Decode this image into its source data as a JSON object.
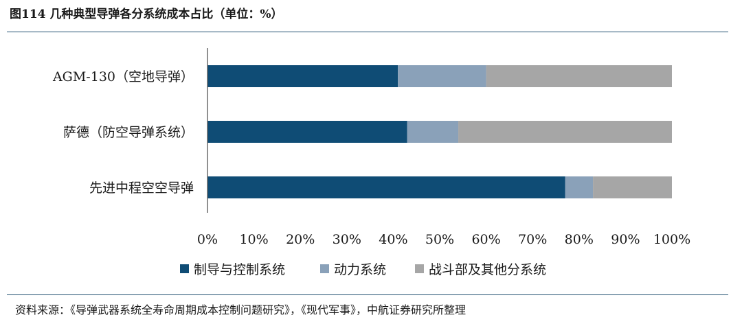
{
  "title": "图114  几种典型导弹各分系统成本占比（单位：%）",
  "source": "资料来源：《导弹武器系统全寿命周期成本控制问题研究》，《现代军事》，中航证券研究所整理",
  "chart_data": {
    "type": "bar",
    "orientation": "horizontal",
    "stacked": true,
    "title": "图114  几种典型导弹各分系统成本占比（单位：%）",
    "categories": [
      "AGM-130（空地导弹）",
      "萨德（防空导弹系统）",
      "先进中程空空导弹"
    ],
    "series": [
      {
        "name": "制导与控制系统",
        "color": "#0f4c75",
        "values": [
          41,
          43,
          77
        ]
      },
      {
        "name": "动力系统",
        "color": "#8aa1b9",
        "values": [
          19,
          11,
          6
        ]
      },
      {
        "name": "战斗部及其他分系统",
        "color": "#a6a6a6",
        "values": [
          40,
          46,
          17
        ]
      }
    ],
    "xlim": [
      0,
      100
    ],
    "xticks": [
      "0%",
      "10%",
      "20%",
      "30%",
      "40%",
      "50%",
      "60%",
      "70%",
      "80%",
      "90%",
      "100%"
    ],
    "xlabel": "",
    "ylabel": "",
    "legend_position": "bottom",
    "grid": false
  }
}
